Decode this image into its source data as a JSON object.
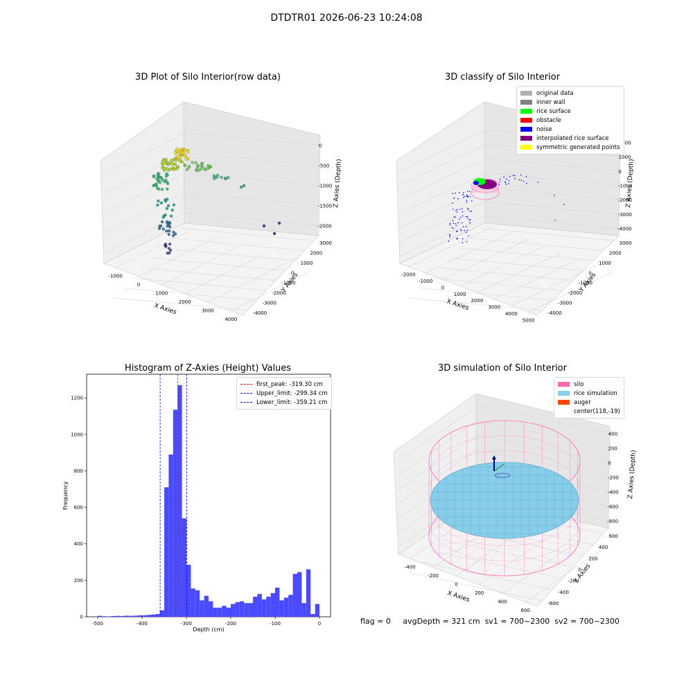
{
  "figure_title": "DTDTR01 2026-06-23 10:24:08",
  "status": {
    "flag": "flag = 0",
    "avg_depth": "avgDepth = 321 cm",
    "sv1": "sv1 = 700~2300",
    "sv2": "sv2 = 700~2300"
  },
  "colors": {
    "original": "#b0b0b0",
    "inner_wall": "#808080",
    "rice_surface": "#00ff00",
    "obstacle": "#ff0000",
    "noise": "#0000ff",
    "interpolated": "#800080",
    "symmetric": "#ffff00",
    "silo": "#ff69b4",
    "rice_sim": "#87ceeb",
    "auger": "#ff4500",
    "histogram": "#4a4aff"
  },
  "chart_data": [
    {
      "type": "scatter",
      "title": "3D Plot of Silo Interior(row data)",
      "xlabel": "X Axies",
      "ylabel": "Y Axies",
      "zlabel": "Z Axies (Depth)",
      "x_ticks": [
        "-1000",
        "0",
        "1000",
        "2000",
        "3000",
        "4000"
      ],
      "y_ticks": [
        "-4000",
        "-3000",
        "-2000",
        "-1000",
        "0",
        "1000",
        "2000",
        "3000"
      ],
      "z_ticks": [
        "-2000",
        "-1500",
        "-1000",
        "-500",
        "0"
      ],
      "colormap": "viridis"
    },
    {
      "type": "scatter",
      "title": "3D classify of Silo Interior",
      "xlabel": "X Axies",
      "ylabel": "Y Axies",
      "zlabel": "Z Axies (Depth)",
      "x_ticks": [
        "-2000",
        "-1000",
        "0",
        "1000",
        "2000",
        "3000",
        "4000",
        "5000"
      ],
      "y_ticks": [
        "-4000",
        "-3000",
        "-2000",
        "-1000",
        "0",
        "1000",
        "2000",
        "3000"
      ],
      "z_ticks": [
        "-4000",
        "-3000",
        "-2000",
        "-1000",
        "0",
        "1000",
        "2000"
      ],
      "legend": [
        "original data",
        "inner wall",
        "rice surface",
        "obstacle",
        "noise",
        "interpolated rice surface",
        "symmetric generated points"
      ],
      "legend_placement": "top-right"
    },
    {
      "type": "bar",
      "title": "Histogram of Z-Axies (Height) Values",
      "xlabel": "Depth (cm)",
      "ylabel": "Frequency",
      "xlim": [
        -525,
        25
      ],
      "ylim": [
        0,
        1330
      ],
      "x_ticks": [
        -500,
        -400,
        -300,
        -200,
        -100,
        0
      ],
      "y_ticks": [
        0,
        200,
        400,
        600,
        800,
        1000,
        1200
      ],
      "bin_width": 10,
      "bins_start": [
        -500,
        -490,
        -480,
        -470,
        -460,
        -450,
        -440,
        -430,
        -420,
        -410,
        -400,
        -390,
        -380,
        -370,
        -360,
        -350,
        -340,
        -330,
        -320,
        -310,
        -300,
        -290,
        -280,
        -270,
        -260,
        -250,
        -240,
        -230,
        -220,
        -210,
        -200,
        -190,
        -180,
        -170,
        -160,
        -150,
        -140,
        -130,
        -120,
        -110,
        -100,
        -90,
        -80,
        -70,
        -60,
        -50,
        -40,
        -30,
        -20,
        -10,
        0
      ],
      "values": [
        5,
        3,
        2,
        4,
        5,
        4,
        6,
        5,
        6,
        8,
        8,
        10,
        12,
        15,
        35,
        710,
        890,
        1135,
        1270,
        540,
        285,
        155,
        145,
        90,
        115,
        85,
        50,
        50,
        60,
        50,
        70,
        80,
        85,
        75,
        75,
        110,
        125,
        95,
        110,
        130,
        160,
        90,
        105,
        120,
        235,
        245,
        75,
        260,
        15,
        70,
        0
      ],
      "vlines": [
        {
          "label": "first_peak: -319.30 cm",
          "x": -319.3,
          "color": "#ff0000"
        },
        {
          "label": "Upper_limit: -299.34 cm",
          "x": -299.34,
          "color": "#0000cc"
        },
        {
          "label": "Lower_limit: -359.21 cm",
          "x": -359.21,
          "color": "#0000cc"
        }
      ],
      "legend_placement": "top-right"
    },
    {
      "type": "scatter",
      "title": "3D simulation of Silo Interior",
      "xlabel": "X Axies",
      "ylabel": "Y Axies",
      "zlabel": "Z Axies (Depth)",
      "x_ticks": [
        "-400",
        "-200",
        "0",
        "200",
        "400",
        "600"
      ],
      "y_ticks": [
        "-600",
        "-400",
        "-200",
        "0",
        "200",
        "400",
        "600"
      ],
      "z_ticks": [
        "-800",
        "-600",
        "-400",
        "-200",
        "0",
        "200",
        "400"
      ],
      "legend": [
        "silo",
        "rice simulation",
        "auger",
        "center(118,-19)"
      ],
      "legend_placement": "top-right"
    }
  ]
}
